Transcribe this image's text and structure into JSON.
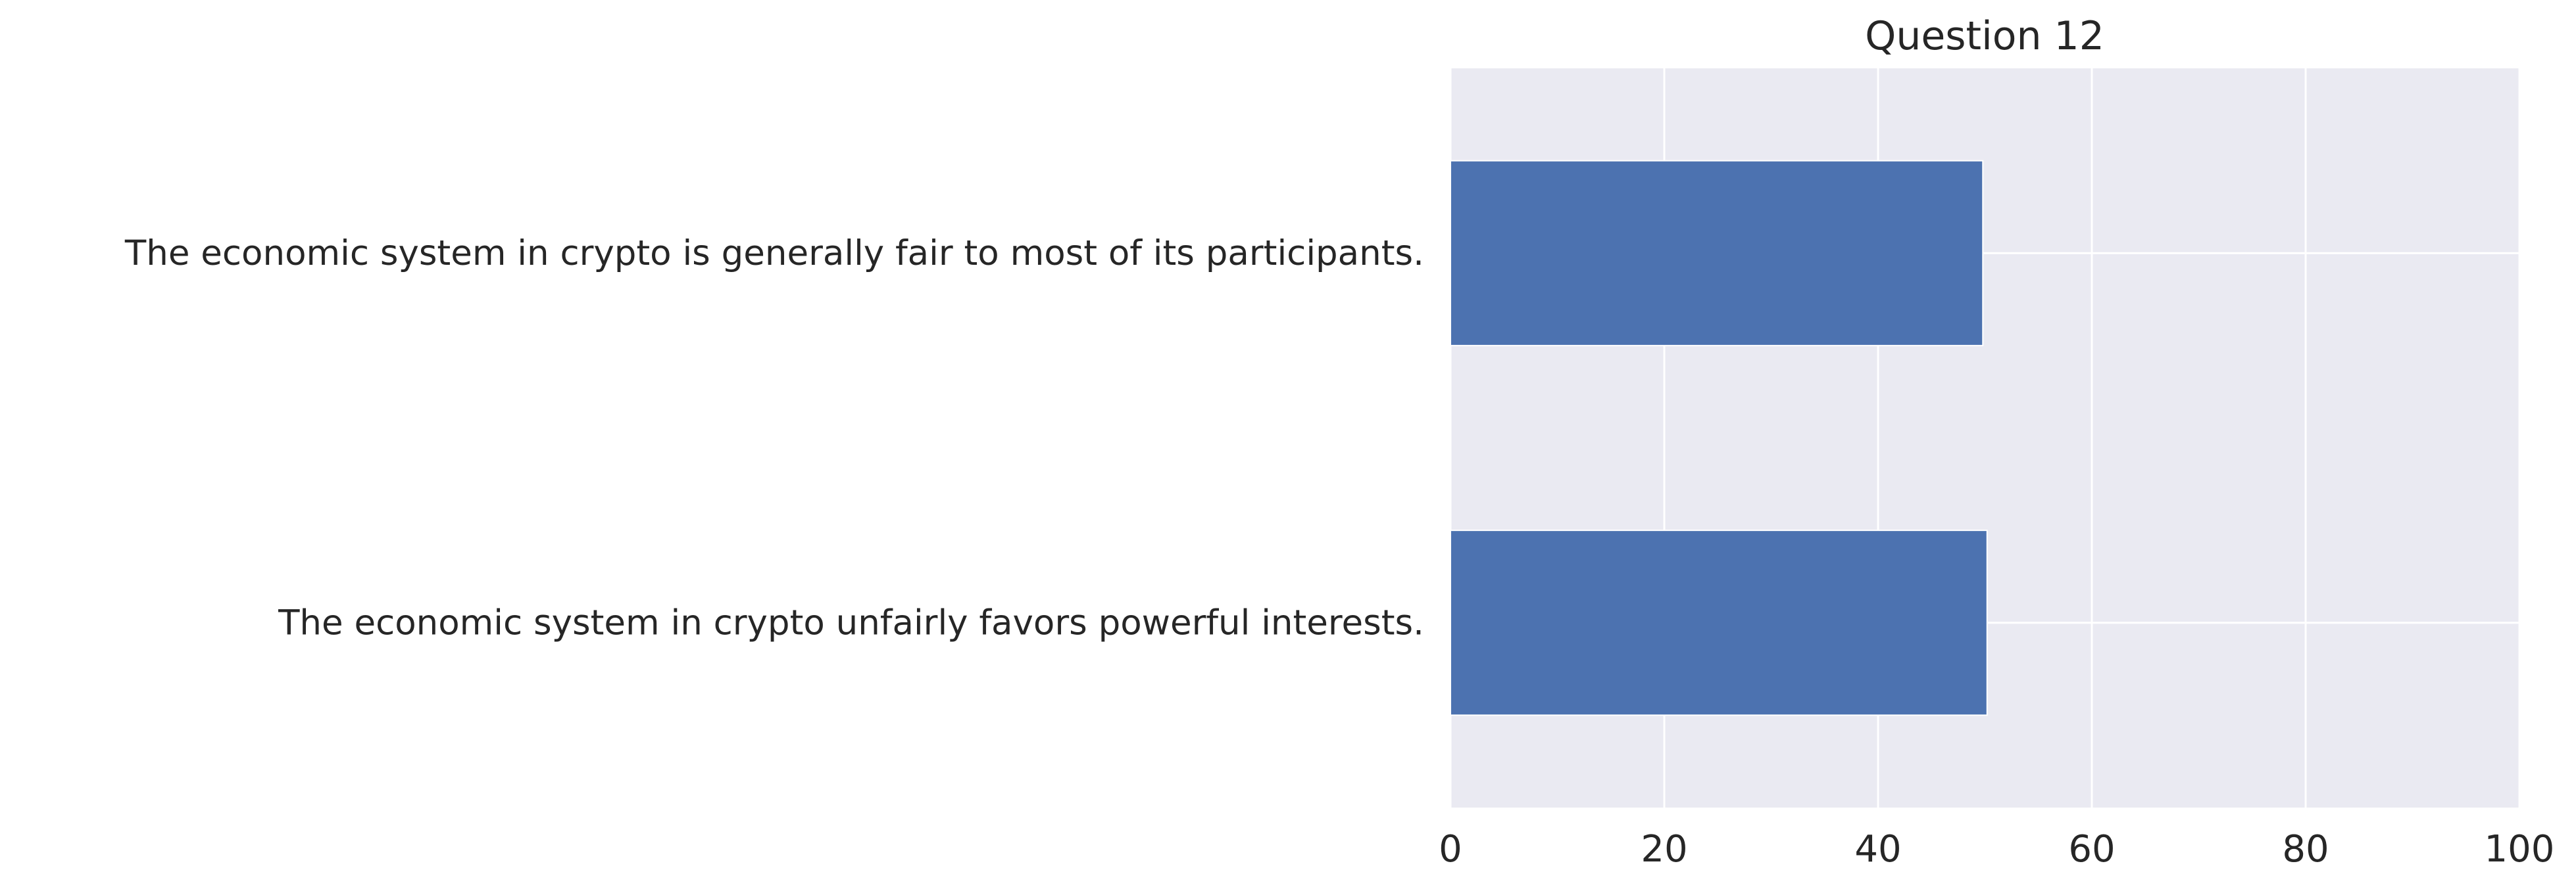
{
  "chart_data": {
    "type": "bar",
    "orientation": "horizontal",
    "title": "Question 12",
    "xlabel": "",
    "ylabel": "",
    "categories": [
      "The economic system in crypto is generally fair to most of its participants.",
      "The economic system in crypto unfairly favors powerful interests."
    ],
    "values": [
      49.8,
      50.2
    ],
    "xlim": [
      0,
      100
    ],
    "xticks": [
      0,
      20,
      40,
      60,
      80,
      100
    ],
    "grid": true,
    "legend": "none",
    "colors": {
      "bar": "#4c72b0",
      "plot_background": "#eaeaf2",
      "grid": "#ffffff",
      "text": "#262626"
    }
  }
}
